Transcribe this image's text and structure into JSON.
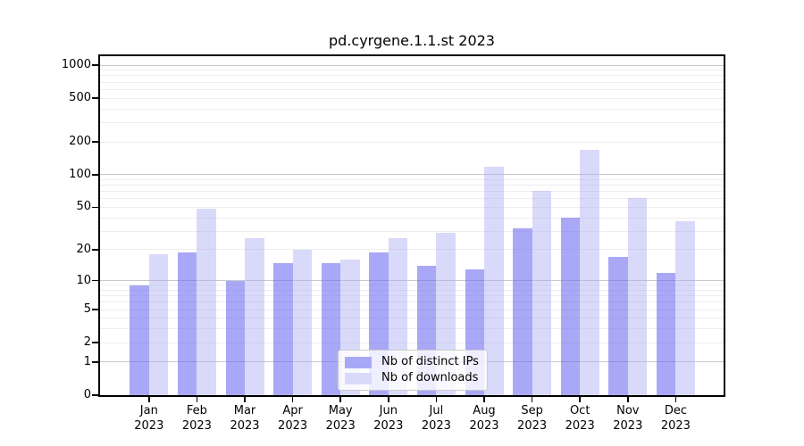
{
  "title": "pd.cyrgene.1.1.st 2023",
  "colors": {
    "ips_bar_fill": "rgba(110,110,242,0.6)",
    "downloads_bar_fill": "rgba(170,170,245,0.45)",
    "ips_swatch": "#a8a8f7",
    "downloads_swatch": "#d9d9fa",
    "major_gridline": "#c9c9c9",
    "minor_gridline": "#ededed",
    "axis_line": "#000000",
    "background": "#ffffff",
    "text": "#000000"
  },
  "legend": {
    "items": [
      {
        "label": "Nb of distinct IPs",
        "series_key": "distinct-ips"
      },
      {
        "label": "Nb of downloads",
        "series_key": "downloads"
      }
    ]
  },
  "chart_data": {
    "type": "bar",
    "title": "pd.cyrgene.1.1.st 2023",
    "categories": [
      "Jan 2023",
      "Feb 2023",
      "Mar 2023",
      "Apr 2023",
      "May 2023",
      "Jun 2023",
      "Jul 2023",
      "Aug 2023",
      "Sep 2023",
      "Oct 2023",
      "Nov 2023",
      "Dec 2023"
    ],
    "series": [
      {
        "name": "Nb of distinct IPs",
        "values": [
          9,
          19,
          10,
          15,
          15,
          19,
          14,
          13,
          32,
          40,
          17,
          12
        ]
      },
      {
        "name": "Nb of downloads",
        "values": [
          18,
          49,
          26,
          20,
          16,
          26,
          29,
          118,
          71,
          170,
          61,
          37
        ]
      }
    ],
    "xlabel": "",
    "ylabel": "",
    "yscale": "log1p",
    "yticks": [
      0,
      1,
      2,
      5,
      10,
      20,
      50,
      100,
      200,
      500,
      1000
    ],
    "ylim": [
      0,
      1270
    ],
    "grid": true,
    "legend_position": "lower center"
  }
}
